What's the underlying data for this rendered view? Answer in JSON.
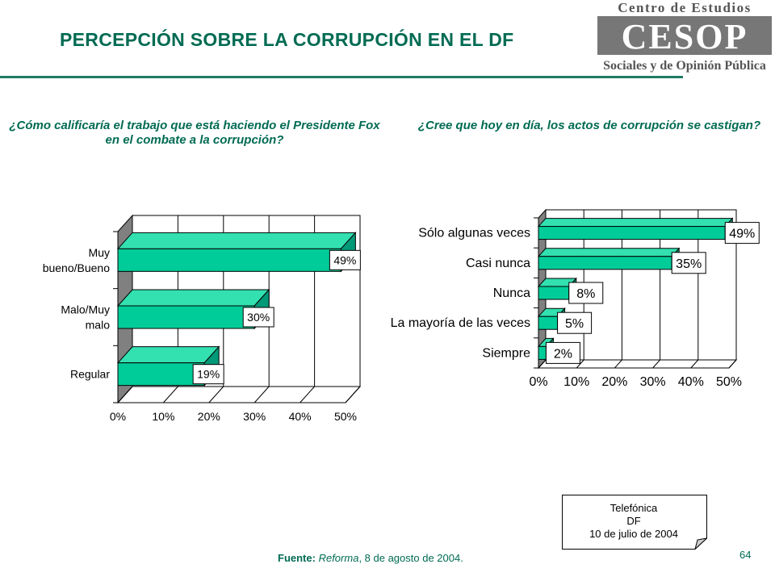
{
  "header": {
    "title": "PERCEPCIÓN SOBRE LA CORRUPCIÓN EN EL DF",
    "logo": {
      "line1": "Centro de Estudios",
      "mark": "CESOP",
      "line2": "Sociales y de Opinión Pública"
    }
  },
  "questions": {
    "left": "¿Cómo calificaría el trabajo que está haciendo el Presidente Fox en el combate a la corrupción?",
    "right": "¿Cree que hoy en día, los actos de corrupción se castigan?"
  },
  "chart_data": [
    {
      "type": "bar",
      "orientation": "horizontal",
      "categories": [
        [
          "Muy",
          "bueno/Bueno"
        ],
        [
          "Malo/Muy",
          "malo"
        ],
        [
          "Regular"
        ]
      ],
      "values": [
        49,
        30,
        19
      ],
      "data_labels": [
        "49%",
        "30%",
        "19%"
      ],
      "xlim": [
        0,
        50
      ],
      "xticks": [
        "0%",
        "10%",
        "20%",
        "30%",
        "40%",
        "50%"
      ],
      "grid": true,
      "style": "3d"
    },
    {
      "type": "bar",
      "orientation": "horizontal",
      "categories": [
        "Sólo algunas veces",
        "Casi nunca",
        "Nunca",
        "La mayoría de las veces",
        "Siempre"
      ],
      "values": [
        49,
        35,
        8,
        5,
        2
      ],
      "data_labels": [
        "49%",
        "35%",
        "8%",
        "5%",
        "2%"
      ],
      "xlim": [
        0,
        50
      ],
      "xticks": [
        "0%",
        "10%",
        "20%",
        "30%",
        "40%",
        "50%"
      ],
      "grid": true,
      "style": "3d"
    }
  ],
  "callout": {
    "line1": "Telefónica",
    "line2": "DF",
    "line3": "10 de julio de 2004"
  },
  "footer": {
    "source_label": "Fuente:",
    "source_name": "Reforma",
    "source_date": ", 8 de agosto de 2004.",
    "page_number": "64"
  },
  "colors": {
    "bar": "#00cc99",
    "bar_dark": "#009977",
    "bar_top": "#33e0b0",
    "wall": "#808080",
    "title": "#006b53"
  }
}
